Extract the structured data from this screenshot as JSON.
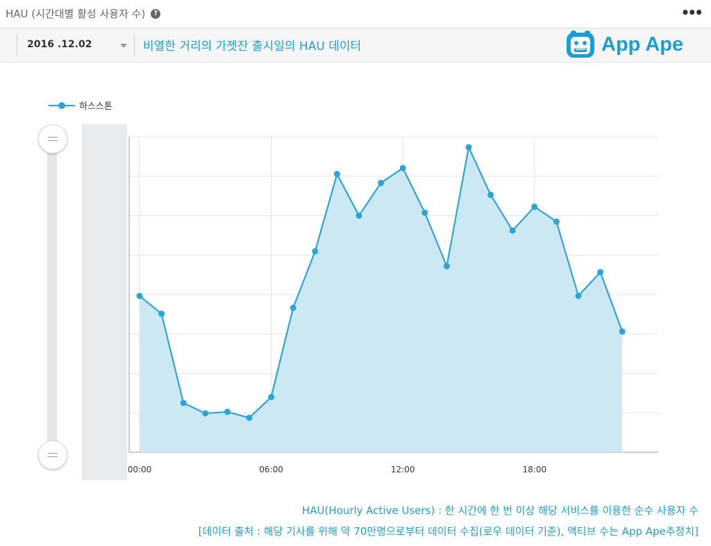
{
  "header": {
    "title": "HAU (시간대별 활성 사용자 수)",
    "more_label": "•••"
  },
  "filter": {
    "date": "2016 .12.02",
    "subtitle": "비열한 거리의 가젯잔 출시일의 HAU 데이터"
  },
  "logo": {
    "text": "App Ape"
  },
  "chart_data": {
    "type": "area",
    "series": [
      {
        "name": "하스스톤",
        "color": "#2da4d6",
        "values": [
          50,
          44,
          14,
          10.5,
          11,
          9,
          16,
          46,
          65,
          91,
          77,
          88,
          93,
          78,
          60,
          100,
          84,
          72,
          80,
          75,
          50,
          58,
          38
        ]
      }
    ],
    "x": [
      0,
      1,
      2,
      3,
      4,
      5,
      6,
      7,
      8,
      9,
      10,
      11,
      12,
      13,
      14,
      15,
      16,
      17,
      18,
      19,
      20,
      21,
      22
    ],
    "x_ticks": [
      "00:00",
      "06:00",
      "12:00",
      "18:00"
    ],
    "xlim": [
      0,
      23.5
    ],
    "ylim": [
      0,
      100
    ],
    "ylabel": "",
    "y_tick_labels_hidden": true,
    "grid": true,
    "legend_position": "top-left",
    "fill_color": "#cce8f2"
  },
  "footnotes": {
    "line1": "HAU(Hourly Active Users) : 한 시간에 한 번 이상 해당 서비스를 이용한 순수 사용자 수",
    "line2": "[데이터 출처 : 해당 기사를 위해 약 70만명으로부터 데이터 수집(로우 데이터 기준), 액티브 수는 App Ape추정치]"
  }
}
